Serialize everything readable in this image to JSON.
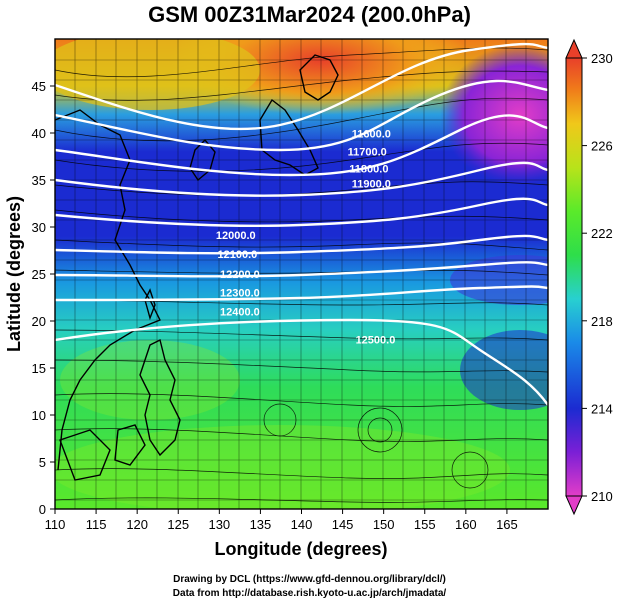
{
  "title": "GSM 00Z31Mar2024 (200.0hPa)",
  "x_axis": {
    "label": "Longitude (degrees)",
    "range": [
      110,
      170
    ],
    "ticks": [
      110,
      115,
      120,
      125,
      130,
      135,
      140,
      145,
      150,
      155,
      160,
      165
    ]
  },
  "y_axis": {
    "label": "Latitude  (degrees)",
    "range": [
      0,
      50
    ],
    "ticks": [
      0,
      5,
      10,
      15,
      20,
      25,
      30,
      35,
      40,
      45
    ]
  },
  "colorbar": {
    "ticks": [
      210,
      214,
      218,
      222,
      226,
      230
    ],
    "range": [
      210,
      230
    ]
  },
  "contour_labels": [
    {
      "text": "11600.0",
      "lon": 148.5,
      "lat": 39.5
    },
    {
      "text": "11700.0",
      "lon": 148.0,
      "lat": 37.6
    },
    {
      "text": "11800.0",
      "lon": 148.2,
      "lat": 35.8
    },
    {
      "text": "11900.0",
      "lon": 148.5,
      "lat": 34.2
    },
    {
      "text": "12000.0",
      "lon": 132.0,
      "lat": 28.7
    },
    {
      "text": "12100.0",
      "lon": 132.2,
      "lat": 26.7
    },
    {
      "text": "12200.0",
      "lon": 132.5,
      "lat": 24.6
    },
    {
      "text": "12300.0",
      "lon": 132.5,
      "lat": 22.6
    },
    {
      "text": "12400.0",
      "lon": 132.5,
      "lat": 20.6
    },
    {
      "text": "12500.0",
      "lon": 149.0,
      "lat": 17.6
    }
  ],
  "credits": {
    "line1": "Drawing by DCL (https://www.gfd-dennou.org/library/dcl/)",
    "line2": "Data from http://database.rish.kyoto-u.ac.jp/arch/jmadata/"
  },
  "colors": {
    "colorbar_stops": [
      "#e23dc8",
      "#7b1fd6",
      "#1b2bd1",
      "#1a8ae8",
      "#28d0d0",
      "#2ede4a",
      "#5aea2a",
      "#b8e31a",
      "#f0c81a",
      "#f07a1a",
      "#e8402a"
    ],
    "contour": "#ffffff",
    "streamline": "#000000"
  }
}
